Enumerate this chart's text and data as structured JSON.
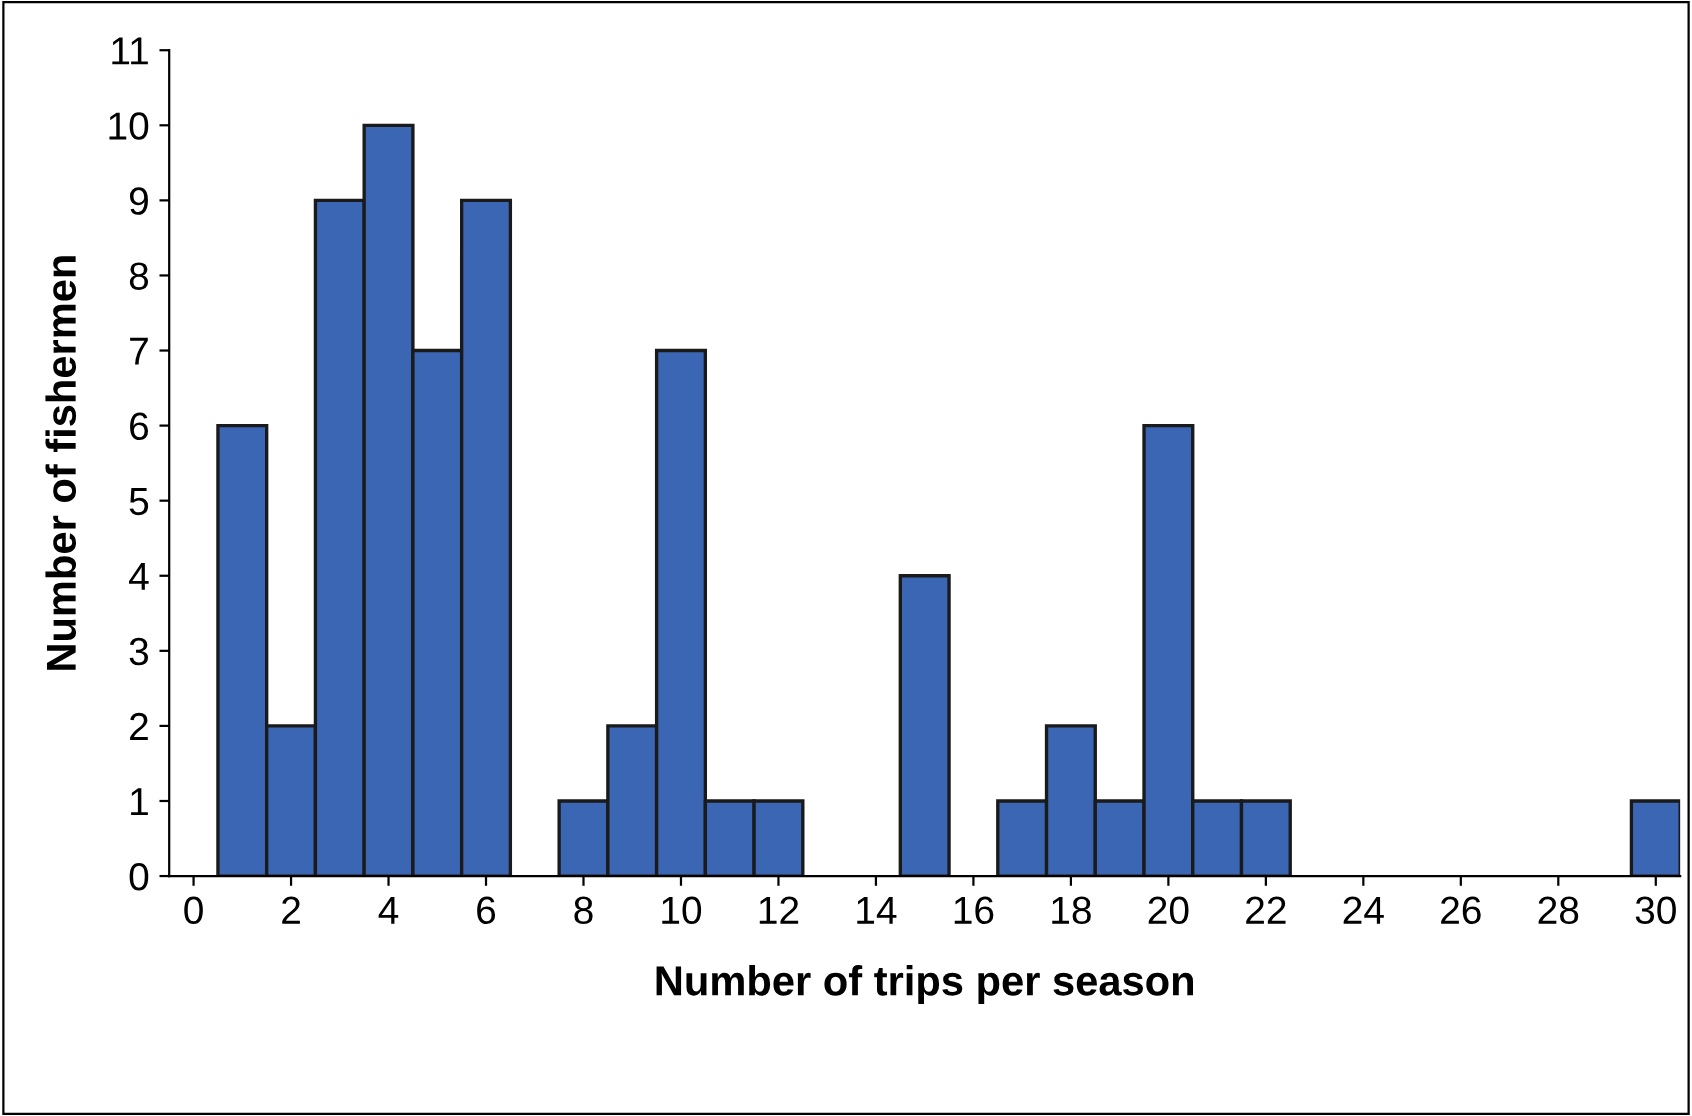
{
  "chart_data": {
    "type": "bar",
    "xlabel": "Number of trips per season",
    "ylabel": "Number of fishermen",
    "x": [
      1,
      2,
      3,
      4,
      5,
      6,
      8,
      9,
      10,
      11,
      12,
      15,
      17,
      18,
      19,
      20,
      21,
      22,
      30
    ],
    "values": [
      6,
      2,
      9,
      10,
      7,
      9,
      1,
      2,
      7,
      1,
      1,
      4,
      1,
      2,
      1,
      6,
      1,
      1,
      1
    ],
    "color": "#3a66b3",
    "xlim": [
      -0.5,
      30.5
    ],
    "xticks": [
      0,
      2,
      4,
      6,
      8,
      10,
      12,
      14,
      16,
      18,
      20,
      22,
      24,
      26,
      28,
      30
    ],
    "ylim": [
      0,
      11
    ],
    "yticks": [
      0,
      1,
      2,
      3,
      4,
      5,
      6,
      7,
      8,
      9,
      10,
      11
    ],
    "grid": false,
    "legend": false
  }
}
